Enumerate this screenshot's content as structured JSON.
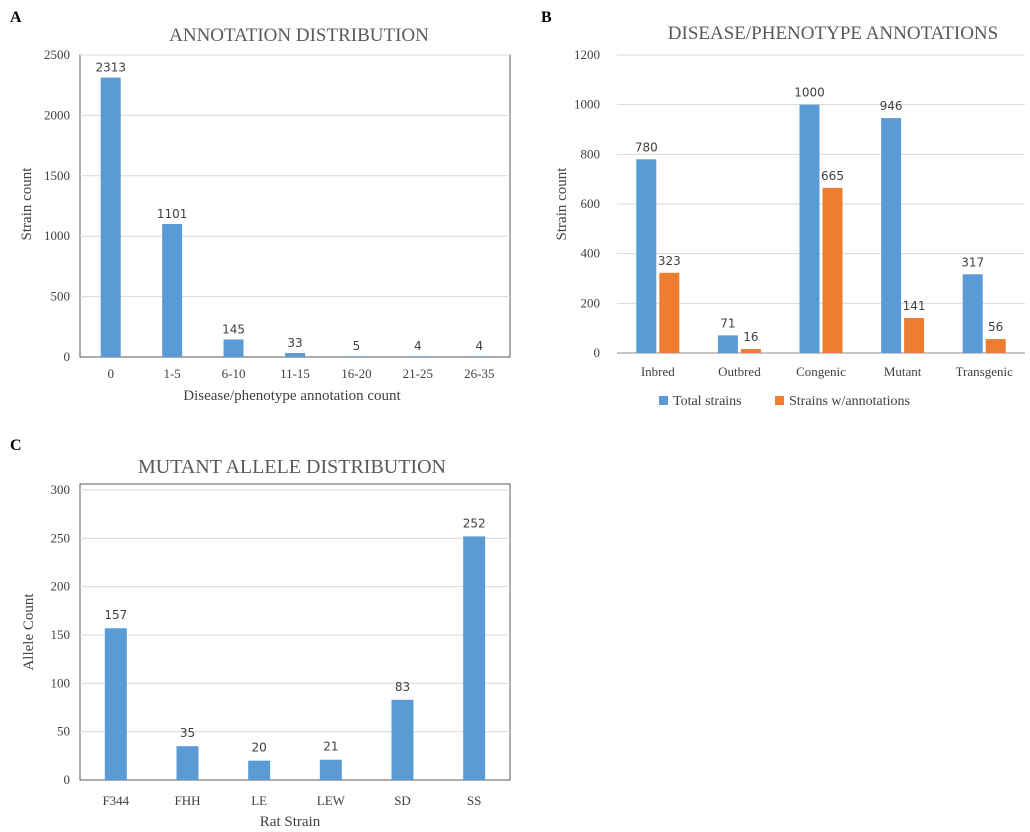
{
  "panels": {
    "a": {
      "letter": "A"
    },
    "b": {
      "letter": "B"
    },
    "c": {
      "letter": "C"
    }
  },
  "colors": {
    "blue": "#5b9bd5",
    "orange": "#ed7d31",
    "grid": "#d9d9d9",
    "axis": "#8c8c8c"
  },
  "chart_data": [
    {
      "id": "a",
      "type": "bar",
      "title": "ANNOTATION DISTRIBUTION",
      "xlabel": "Disease/phenotype annotation count",
      "ylabel": "Strain count",
      "categories": [
        "0",
        "1-5",
        "6-10",
        "11-15",
        "16-20",
        "21-25",
        "26-35"
      ],
      "series": [
        {
          "values": [
            2313,
            1101,
            145,
            33,
            5,
            4,
            4
          ],
          "color": "#5b9bd5"
        }
      ],
      "ylim": [
        0,
        2500
      ],
      "yticks": [
        0,
        500,
        1000,
        1500,
        2000,
        2500
      ],
      "grid": true,
      "legend": "none"
    },
    {
      "id": "b",
      "type": "bar",
      "title": "DISEASE/PHENOTYPE ANNOTATIONS",
      "xlabel": "",
      "ylabel": "Strain count",
      "categories": [
        "Inbred",
        "Outbred",
        "Congenic",
        "Mutant",
        "Transgenic"
      ],
      "series": [
        {
          "name": "Total strains",
          "values": [
            780,
            71,
            1000,
            946,
            317
          ],
          "color": "#5b9bd5"
        },
        {
          "name": "Strains w/annotations",
          "values": [
            323,
            16,
            665,
            141,
            56
          ],
          "color": "#ed7d31"
        }
      ],
      "ylim": [
        0,
        1200
      ],
      "yticks": [
        0,
        200,
        400,
        600,
        800,
        1000,
        1200
      ],
      "grid": true,
      "legend": "bottom"
    },
    {
      "id": "c",
      "type": "bar",
      "title": "MUTANT ALLELE DISTRIBUTION",
      "xlabel": "Rat Strain",
      "ylabel": "Allele Count",
      "categories": [
        "F344",
        "FHH",
        "LE",
        "LEW",
        "SD",
        "SS"
      ],
      "series": [
        {
          "values": [
            157,
            35,
            20,
            21,
            83,
            252
          ],
          "color": "#5b9bd5"
        }
      ],
      "ylim": [
        0,
        300
      ],
      "yticks": [
        0,
        50,
        100,
        150,
        200,
        250,
        300
      ],
      "grid": true,
      "legend": "none"
    }
  ]
}
